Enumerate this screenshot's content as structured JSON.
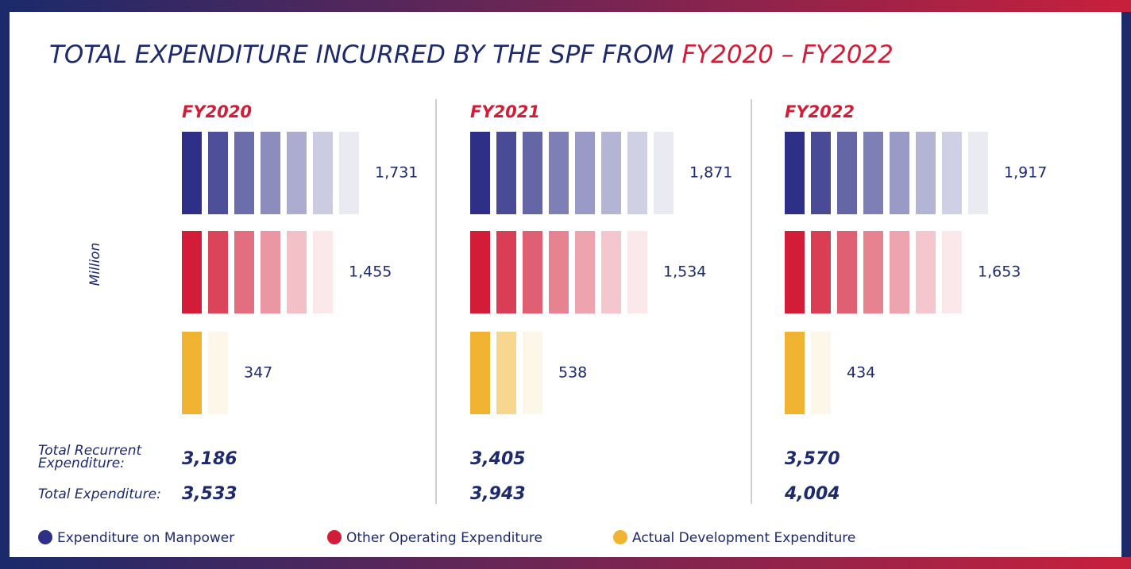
{
  "chart_data": {
    "type": "pictograph",
    "title": "TOTAL EXPENDITURE INCURRED BY THE SPF FROM ",
    "title_highlight": "FY2020 – FY2022",
    "y_label": "Million",
    "categories": [
      "FY2020",
      "FY2021",
      "FY2022"
    ],
    "series": [
      {
        "name": "Expenditure on Manpower",
        "color": "#2e3087",
        "values": [
          1731,
          1871,
          1917
        ],
        "value_labels": [
          "1,731",
          "1,871",
          "1,917"
        ]
      },
      {
        "name": "Other Operating Expenditure",
        "color": "#d31c37",
        "values": [
          1455,
          1534,
          1653
        ],
        "value_labels": [
          "1,455",
          "1,534",
          "1,653"
        ]
      },
      {
        "name": "Actual Development Expenditure",
        "color": "#f0b432",
        "values": [
          347,
          538,
          434
        ],
        "value_labels": [
          "347",
          "538",
          "434"
        ]
      }
    ],
    "totals": [
      {
        "label": "Total Recurrent Expenditure:",
        "values": [
          3186,
          3405,
          3570
        ],
        "value_labels": [
          "3,186",
          "3,405",
          "3,570"
        ]
      },
      {
        "label": "Total Expenditure:",
        "values": [
          3533,
          3943,
          4004
        ],
        "value_labels": [
          "3,533",
          "3,943",
          "4,004"
        ]
      }
    ]
  }
}
